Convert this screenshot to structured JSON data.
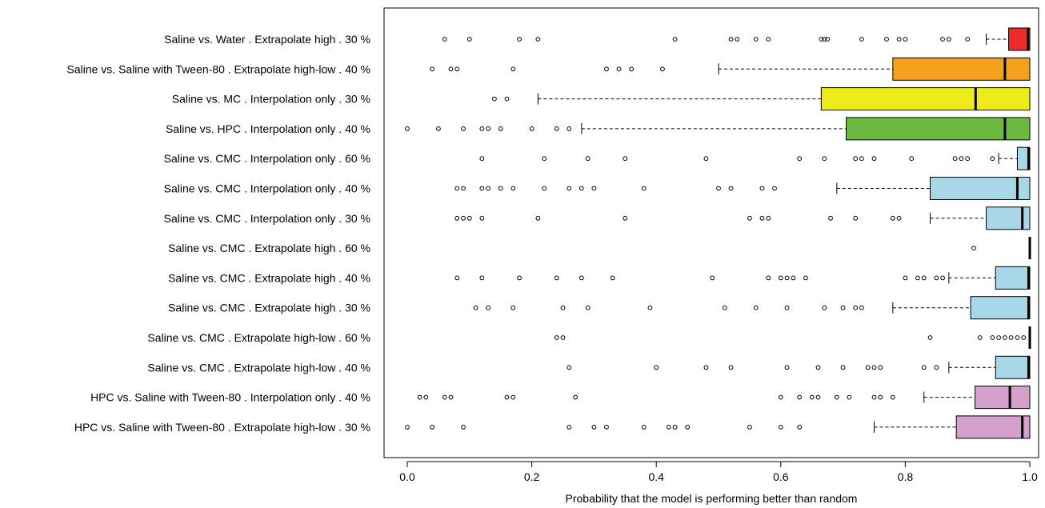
{
  "chart_data": {
    "type": "boxplot",
    "orientation": "horizontal",
    "xlabel": "Probability that the model is performing better than random",
    "xlim": [
      0.0,
      1.0
    ],
    "xticks": [
      "0.0",
      "0.2",
      "0.4",
      "0.6",
      "0.8",
      "1.0"
    ],
    "grid": false,
    "legend": "none",
    "rows": [
      {
        "label": "Saline vs.  Water .  Extrapolate high .  30 %",
        "color": "#ee2b2b",
        "q1": 0.966,
        "median": 0.997,
        "q3": 1.0,
        "whisker_low": 0.93,
        "whisker_high": 1.0,
        "outliers": [
          0.06,
          0.1,
          0.18,
          0.21,
          0.43,
          0.52,
          0.53,
          0.56,
          0.58,
          0.665,
          0.67,
          0.675,
          0.73,
          0.77,
          0.79,
          0.8,
          0.86,
          0.87,
          0.9
        ]
      },
      {
        "label": "Saline vs.  Saline with Tween-80 .  Extrapolate high-low .  40 %",
        "color": "#f4a11d",
        "q1": 0.78,
        "median": 0.96,
        "q3": 1.0,
        "whisker_low": 0.5,
        "whisker_high": 1.0,
        "outliers": [
          0.04,
          0.07,
          0.08,
          0.17,
          0.32,
          0.34,
          0.36,
          0.41
        ]
      },
      {
        "label": "Saline vs.  MC .  Interpolation only .  30 %",
        "color": "#eeeb1b",
        "q1": 0.665,
        "median": 0.913,
        "q3": 1.0,
        "whisker_low": 0.21,
        "whisker_high": 1.0,
        "outliers": [
          0.14,
          0.16
        ]
      },
      {
        "label": "Saline vs.  HPC .  Interpolation only .  40 %",
        "color": "#6cb93f",
        "q1": 0.705,
        "median": 0.96,
        "q3": 1.0,
        "whisker_low": 0.28,
        "whisker_high": 1.0,
        "outliers": [
          0.0,
          0.05,
          0.09,
          0.12,
          0.13,
          0.15,
          0.2,
          0.24,
          0.26
        ]
      },
      {
        "label": "Saline vs.  CMC .  Interpolation only .  60 %",
        "color": "#a8d8e8",
        "q1": 0.98,
        "median": 0.998,
        "q3": 1.0,
        "whisker_low": 0.95,
        "whisker_high": 1.0,
        "outliers": [
          0.12,
          0.22,
          0.29,
          0.35,
          0.48,
          0.63,
          0.67,
          0.72,
          0.73,
          0.75,
          0.81,
          0.88,
          0.89,
          0.9,
          0.94
        ]
      },
      {
        "label": "Saline vs.  CMC .  Interpolation only .  40 %",
        "color": "#a8d8e8",
        "q1": 0.84,
        "median": 0.98,
        "q3": 1.0,
        "whisker_low": 0.69,
        "whisker_high": 1.0,
        "outliers": [
          0.08,
          0.09,
          0.12,
          0.13,
          0.15,
          0.17,
          0.22,
          0.26,
          0.28,
          0.3,
          0.38,
          0.5,
          0.52,
          0.57,
          0.59
        ]
      },
      {
        "label": "Saline vs.  CMC .  Interpolation only .  30 %",
        "color": "#a8d8e8",
        "q1": 0.93,
        "median": 0.988,
        "q3": 1.0,
        "whisker_low": 0.84,
        "whisker_high": 1.0,
        "outliers": [
          0.08,
          0.09,
          0.1,
          0.12,
          0.21,
          0.35,
          0.55,
          0.57,
          0.58,
          0.68,
          0.72,
          0.78,
          0.79
        ]
      },
      {
        "label": "Saline vs.  CMC .  Extrapolate high .  60 %",
        "color": "#a8d8e8",
        "q1": 1.0,
        "median": 1.0,
        "q3": 1.0,
        "whisker_low": 1.0,
        "whisker_high": 1.0,
        "outliers": [
          0.91
        ]
      },
      {
        "label": "Saline vs.  CMC .  Extrapolate high .  40 %",
        "color": "#a8d8e8",
        "q1": 0.945,
        "median": 0.998,
        "q3": 1.0,
        "whisker_low": 0.87,
        "whisker_high": 1.0,
        "outliers": [
          0.08,
          0.12,
          0.18,
          0.24,
          0.28,
          0.33,
          0.49,
          0.58,
          0.6,
          0.61,
          0.62,
          0.64,
          0.8,
          0.82,
          0.83,
          0.85,
          0.86
        ]
      },
      {
        "label": "Saline vs.  CMC .  Extrapolate high .  30 %",
        "color": "#a8d8e8",
        "q1": 0.905,
        "median": 0.998,
        "q3": 1.0,
        "whisker_low": 0.78,
        "whisker_high": 1.0,
        "outliers": [
          0.11,
          0.13,
          0.17,
          0.25,
          0.29,
          0.39,
          0.51,
          0.56,
          0.61,
          0.67,
          0.7,
          0.72,
          0.73
        ]
      },
      {
        "label": "Saline vs.  CMC .  Extrapolate high-low .  60 %",
        "color": "#a8d8e8",
        "q1": 1.0,
        "median": 1.0,
        "q3": 1.0,
        "whisker_low": 1.0,
        "whisker_high": 1.0,
        "outliers": [
          0.24,
          0.25,
          0.84,
          0.92,
          0.94,
          0.95,
          0.96,
          0.97,
          0.98,
          0.99
        ]
      },
      {
        "label": "Saline vs.  CMC .  Extrapolate high-low .  40 %",
        "color": "#a8d8e8",
        "q1": 0.945,
        "median": 0.998,
        "q3": 1.0,
        "whisker_low": 0.87,
        "whisker_high": 1.0,
        "outliers": [
          0.26,
          0.4,
          0.48,
          0.52,
          0.61,
          0.66,
          0.7,
          0.74,
          0.75,
          0.76,
          0.83,
          0.85
        ]
      },
      {
        "label": "HPC vs.  Saline with Tween-80 .  Interpolation only .  40 %",
        "color": "#d4a0cc",
        "q1": 0.912,
        "median": 0.968,
        "q3": 1.0,
        "whisker_low": 0.83,
        "whisker_high": 1.0,
        "outliers": [
          0.02,
          0.03,
          0.06,
          0.07,
          0.16,
          0.17,
          0.27,
          0.6,
          0.63,
          0.65,
          0.66,
          0.69,
          0.71,
          0.75,
          0.76,
          0.78
        ]
      },
      {
        "label": "HPC vs.  Saline with Tween-80 .  Extrapolate high-low .  30 %",
        "color": "#d4a0cc",
        "q1": 0.882,
        "median": 0.988,
        "q3": 1.0,
        "whisker_low": 0.75,
        "whisker_high": 1.0,
        "outliers": [
          0.0,
          0.04,
          0.09,
          0.26,
          0.3,
          0.32,
          0.38,
          0.42,
          0.43,
          0.45,
          0.55,
          0.6,
          0.63
        ]
      }
    ]
  }
}
